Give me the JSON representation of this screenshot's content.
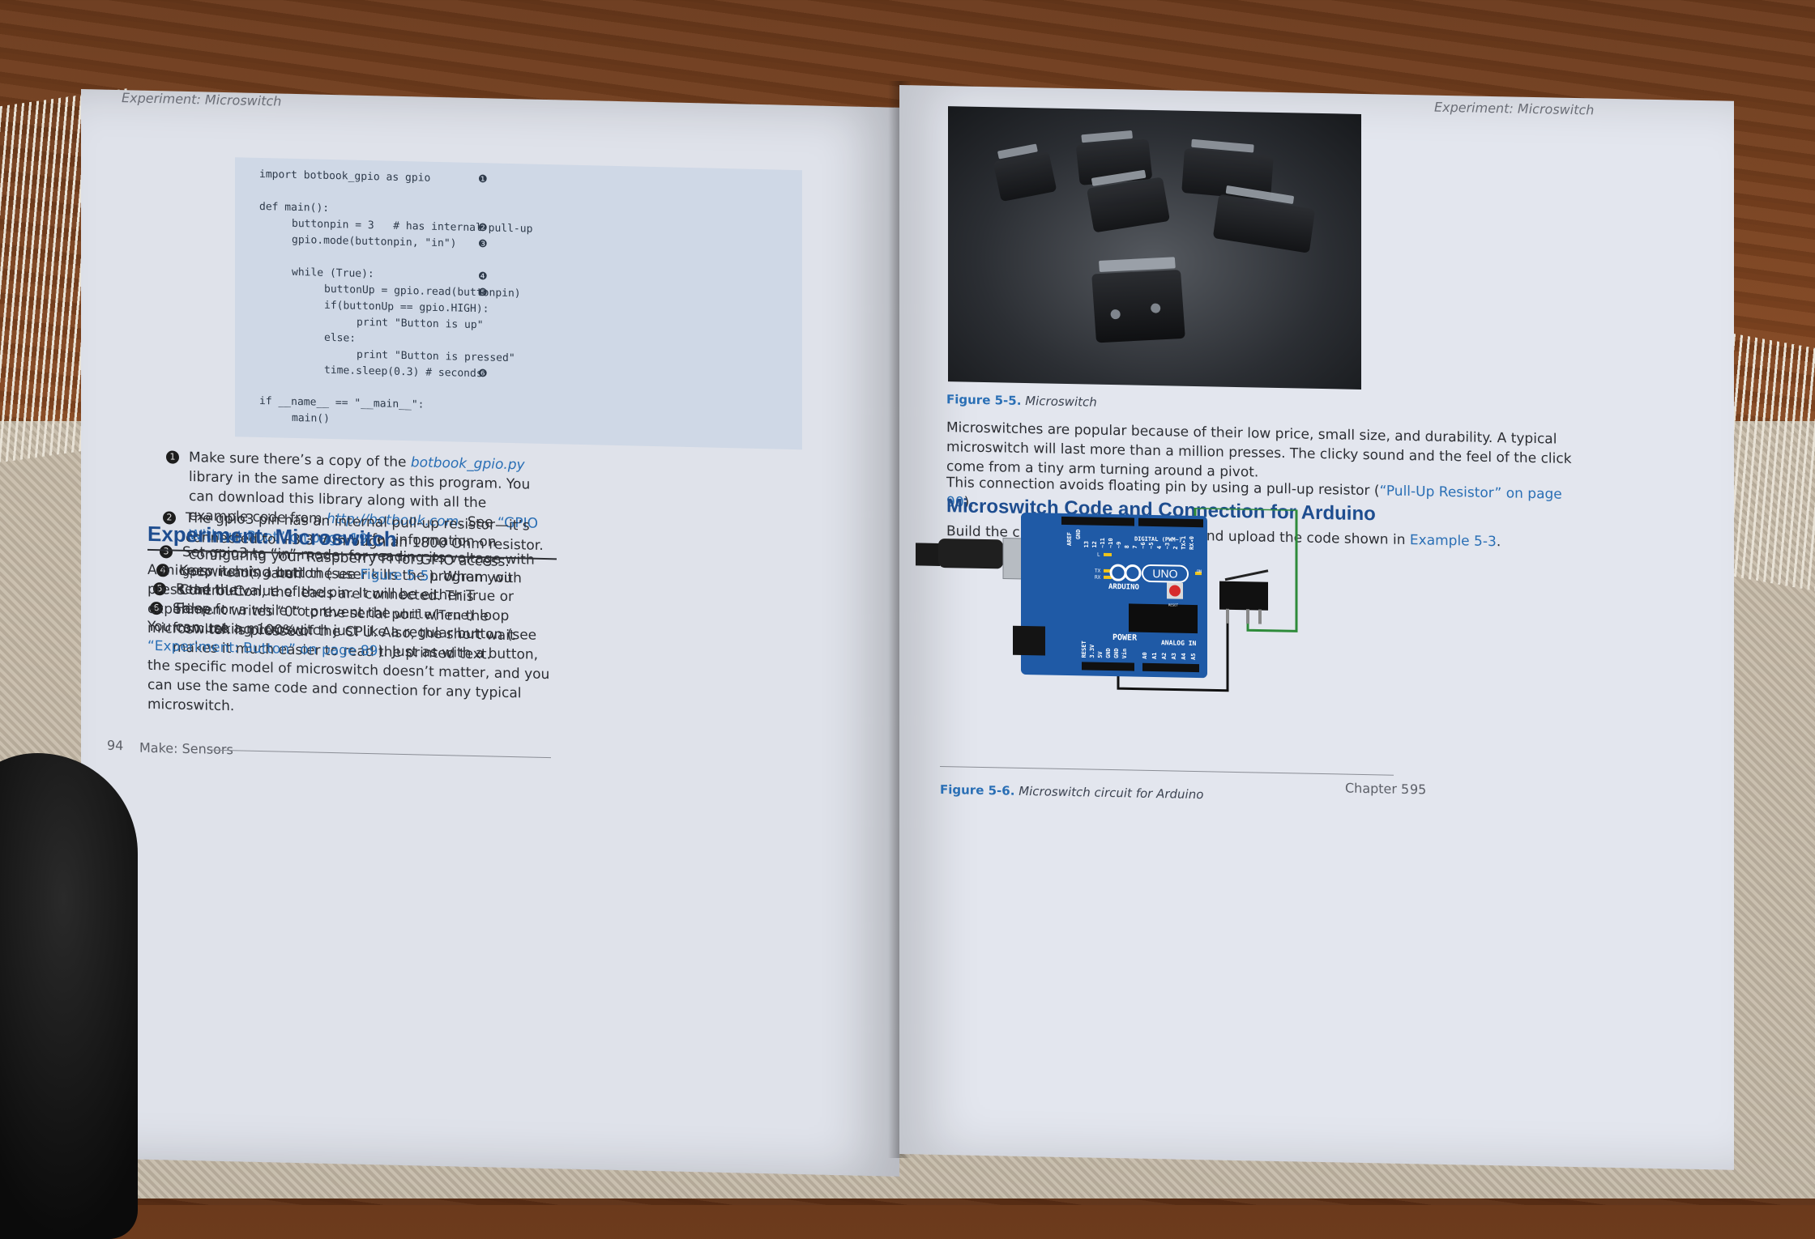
{
  "left_page": {
    "running_head": "Experiment: Microswitch",
    "code_lines": [
      {
        "indent": 0,
        "code": "import botbook_gpio as gpio",
        "marker": "❶"
      },
      {
        "indent": 0,
        "code": "",
        "marker": ""
      },
      {
        "indent": 0,
        "code": "def main():",
        "marker": ""
      },
      {
        "indent": 1,
        "code": "buttonpin = 3   # has internal pull-up",
        "marker": "❷"
      },
      {
        "indent": 1,
        "code": "gpio.mode(buttonpin, \"in\")",
        "marker": "❸"
      },
      {
        "indent": 0,
        "code": "",
        "marker": ""
      },
      {
        "indent": 1,
        "code": "while (True):",
        "marker": "❹"
      },
      {
        "indent": 2,
        "code": "buttonUp = gpio.read(buttonpin)",
        "marker": "❺"
      },
      {
        "indent": 2,
        "code": "if(buttonUp == gpio.HIGH):",
        "marker": ""
      },
      {
        "indent": 3,
        "code": "print \"Button is up\"",
        "marker": ""
      },
      {
        "indent": 2,
        "code": "else:",
        "marker": ""
      },
      {
        "indent": 3,
        "code": "print \"Button is pressed\"",
        "marker": ""
      },
      {
        "indent": 2,
        "code": "time.sleep(0.3) # seconds",
        "marker": "❻"
      },
      {
        "indent": 0,
        "code": "",
        "marker": ""
      },
      {
        "indent": 0,
        "code": "if __name__ == \"__main__\":",
        "marker": ""
      },
      {
        "indent": 1,
        "code": "main()",
        "marker": ""
      }
    ],
    "callouts": [
      {
        "num": "1",
        "html_text": "Make sure there’s a copy of the <i class=\"link\">botbook_gpio.py</i> library in the same directory as this program. You can download this library along with all the example code from <i class=\"link\">http://botbook.com</i>. See <span class=\"link\">“GPIO Without Root” on page 19</span> for information on configuring your Raspberry Pi for GPIO access."
      },
      {
        "num": "2",
        "html_text": "The gpio3 pin has an internal pull-up resistor—it’s connected to +3.3 V through an 1800 Ohm resistor."
      },
      {
        "num": "3",
        "html_text": "Set gpio3 to “in” mode, for reading its voltage with <span class=\"mono\">gpio.read()</span> later."
      },
      {
        "num": "4",
        "html_text": "Keep running until the user kills the program with Control-C."
      },
      {
        "num": "5",
        "html_text": "Read the value of the pin. It will be either True or False."
      },
      {
        "num": "6",
        "html_text": "Sleep for a while to prevent the <span class=\"mono\">while(True)</span> loop from taking 100% of the CPU. Also, the short wait makes it much easier to read the printed text."
      }
    ],
    "section_heading": "Experiment: Microswitch",
    "para1": "A microswitch is a button (see <span class=\"link\">Figure 5-5</span>). When you press the button, the leads are connected. This experiment writes “0” to the serial port when the microswitch is pressed.",
    "para2": "You can use a microswitch just like a regular button (see <span class=\"link\">“Experiment: Button” on page 89</span>). Just as with a button, the specific model of microswitch doesn’t matter, and you can use the same code and connection for any typical microswitch.",
    "footer_page": "94",
    "footer_title": "Make: Sensors"
  },
  "right_page": {
    "running_head": "Experiment: Microswitch",
    "figure1_label": "Figure 5-5.",
    "figure1_caption": "Microswitch",
    "para1": "Microswitches are popular because of their low price, small size, and durability. A typical microswitch will last more than a million presses. The clicky sound and the feel of the click come from a tiny arm turning around a pivot.",
    "para2": "This connection avoids floating pin by using a pull-up resistor (<span class=\"link\">“Pull-Up Resistor” on page 90</span>).",
    "section_heading": "Microswitch Code and Connection for Arduino",
    "para3": "Build the circuit shown in <span class=\"link\">Figure 5-6</span> and upload the code shown in <span class=\"link\">Example 5-3</span>.",
    "board": {
      "digital_label": "DIGITAL (PWM~)",
      "brand": "ARDUINO",
      "model": "UNO",
      "power_label": "POWER",
      "analog_label": "ANALOG IN",
      "aref": "AREF",
      "gnd": "GND",
      "on": "ON",
      "reset_btn": "RESET",
      "led_l": "L",
      "led_tx": "TX",
      "led_rx": "RX",
      "power_pins": [
        "RESET",
        "3.3V",
        "5V",
        "GND",
        "GND",
        "Vin"
      ],
      "analog_pins": [
        "A0",
        "A1",
        "A2",
        "A3",
        "A4",
        "A5"
      ],
      "digital_pins": [
        "13",
        "12",
        "~11",
        "~10",
        "~9",
        "8",
        "7",
        "~6",
        "~5",
        "4",
        "~3",
        "2",
        "TX▸1",
        "RX◂0"
      ]
    },
    "figure2_label": "Figure 5-6.",
    "figure2_caption": "Microswitch circuit for Arduino",
    "footer_chapter": "Chapter 5",
    "footer_page": "95"
  },
  "colors": {
    "link": "#2a6fb5",
    "heading": "#1e4d8f",
    "board_blue": "#1f5aa6",
    "wire_green": "#2e8b3a"
  }
}
